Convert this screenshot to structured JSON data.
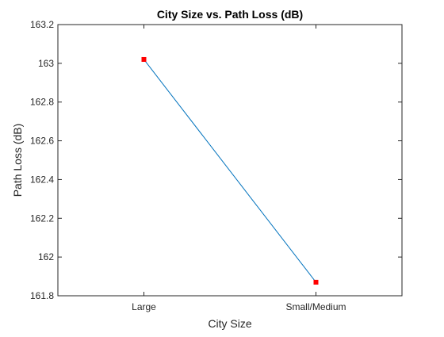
{
  "chart_data": {
    "type": "line",
    "title": "City Size vs. Path Loss (dB)",
    "xlabel": "City Size",
    "ylabel": "Path Loss (dB)",
    "categories": [
      "Large",
      "Small/Medium"
    ],
    "series": [
      {
        "values": [
          163.02,
          161.87
        ],
        "line_color": "#0072BD",
        "marker_color": "#FF0000",
        "marker": "square"
      }
    ],
    "ylim": [
      161.8,
      163.2
    ],
    "yticks": [
      161.8,
      162,
      162.2,
      162.4,
      162.6,
      162.8,
      163,
      163.2
    ],
    "ytick_labels": [
      "161.8",
      "162",
      "162.2",
      "162.4",
      "162.6",
      "162.8",
      "163",
      "163.2"
    ],
    "grid": false,
    "box": true
  }
}
